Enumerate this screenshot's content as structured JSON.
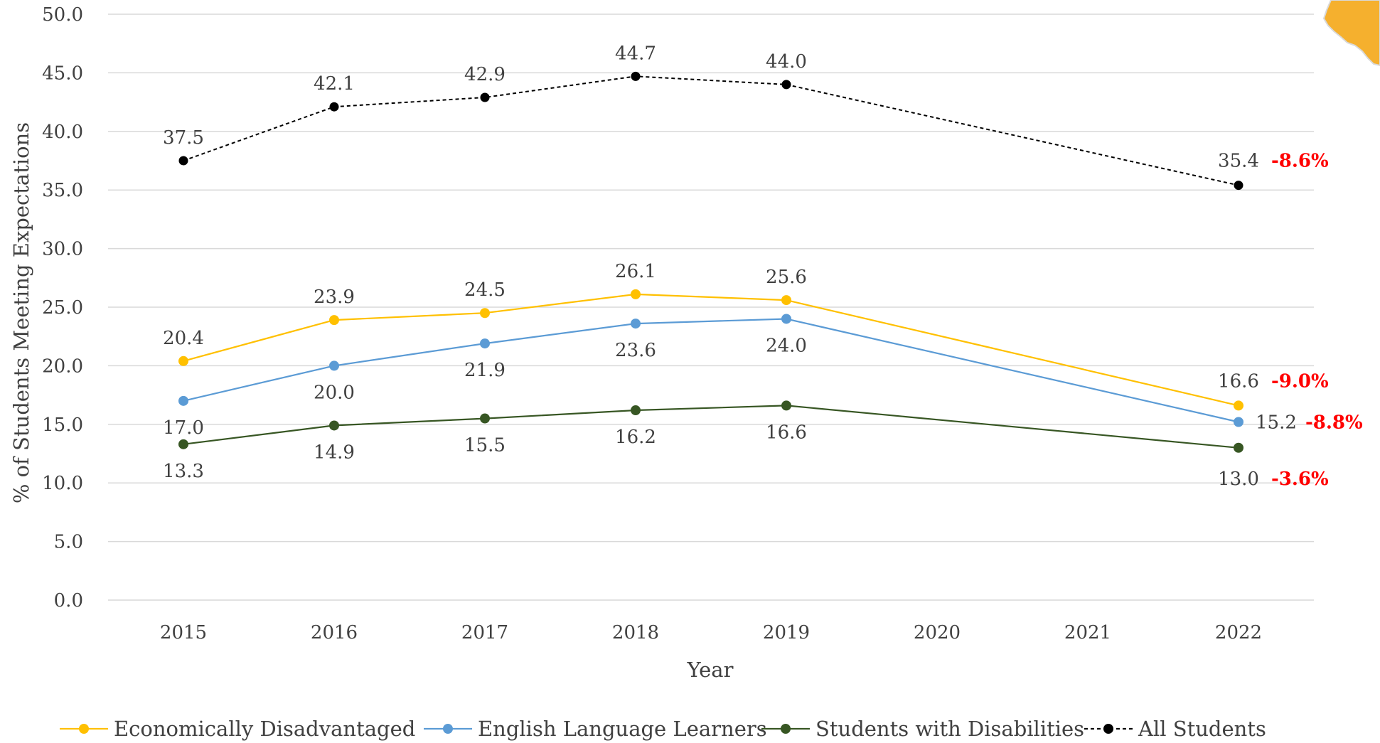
{
  "chart_data": {
    "type": "line",
    "title": "",
    "xlabel": "Year",
    "ylabel": "% of Students Meeting Expectations",
    "x_tick_labels": [
      "2015",
      "2016",
      "2017",
      "2018",
      "2019",
      "2020",
      "2021",
      "2022"
    ],
    "y_tick_labels": [
      "0.0",
      "5.0",
      "10.0",
      "15.0",
      "20.0",
      "25.0",
      "30.0",
      "35.0",
      "40.0",
      "45.0",
      "50.0"
    ],
    "ylim": [
      0,
      50
    ],
    "grid": true,
    "legend_position": "bottom",
    "series": [
      {
        "name": "Economically Disadvantaged",
        "color": "#ffc000",
        "line_style": "solid",
        "points": [
          {
            "x": 2015,
            "y": 20.4,
            "label": "20.4"
          },
          {
            "x": 2016,
            "y": 23.9,
            "label": "23.9"
          },
          {
            "x": 2017,
            "y": 24.5,
            "label": "24.5"
          },
          {
            "x": 2018,
            "y": 26.1,
            "label": "26.1"
          },
          {
            "x": 2019,
            "y": 25.6,
            "label": "25.6"
          },
          {
            "x": 2022,
            "y": 16.6,
            "label": "16.6"
          }
        ],
        "change_label": "-9.0%"
      },
      {
        "name": "English Language Learners",
        "color": "#5b9bd5",
        "line_style": "solid",
        "points": [
          {
            "x": 2015,
            "y": 17.0,
            "label": "17.0"
          },
          {
            "x": 2016,
            "y": 20.0,
            "label": "20.0"
          },
          {
            "x": 2017,
            "y": 21.9,
            "label": "21.9"
          },
          {
            "x": 2018,
            "y": 23.6,
            "label": "23.6"
          },
          {
            "x": 2019,
            "y": 24.0,
            "label": "24.0"
          },
          {
            "x": 2022,
            "y": 15.2,
            "label": "15.2"
          }
        ],
        "change_label": "-8.8%"
      },
      {
        "name": "Students with Disabilities",
        "color": "#375623",
        "line_style": "solid",
        "points": [
          {
            "x": 2015,
            "y": 13.3,
            "label": "13.3"
          },
          {
            "x": 2016,
            "y": 14.9,
            "label": "14.9"
          },
          {
            "x": 2017,
            "y": 15.5,
            "label": "15.5"
          },
          {
            "x": 2018,
            "y": 16.2,
            "label": "16.2"
          },
          {
            "x": 2019,
            "y": 16.6,
            "label": "16.6"
          },
          {
            "x": 2022,
            "y": 13.0,
            "label": "13.0"
          }
        ],
        "change_label": "-3.6%"
      },
      {
        "name": "All Students",
        "color": "#000000",
        "line_style": "dashed",
        "points": [
          {
            "x": 2015,
            "y": 37.5,
            "label": "37.5"
          },
          {
            "x": 2016,
            "y": 42.1,
            "label": "42.1"
          },
          {
            "x": 2017,
            "y": 42.9,
            "label": "42.9"
          },
          {
            "x": 2018,
            "y": 44.7,
            "label": "44.7"
          },
          {
            "x": 2019,
            "y": 44.0,
            "label": "44.0"
          },
          {
            "x": 2022,
            "y": 35.4,
            "label": "35.4"
          }
        ],
        "change_label": "-8.6%"
      }
    ]
  }
}
